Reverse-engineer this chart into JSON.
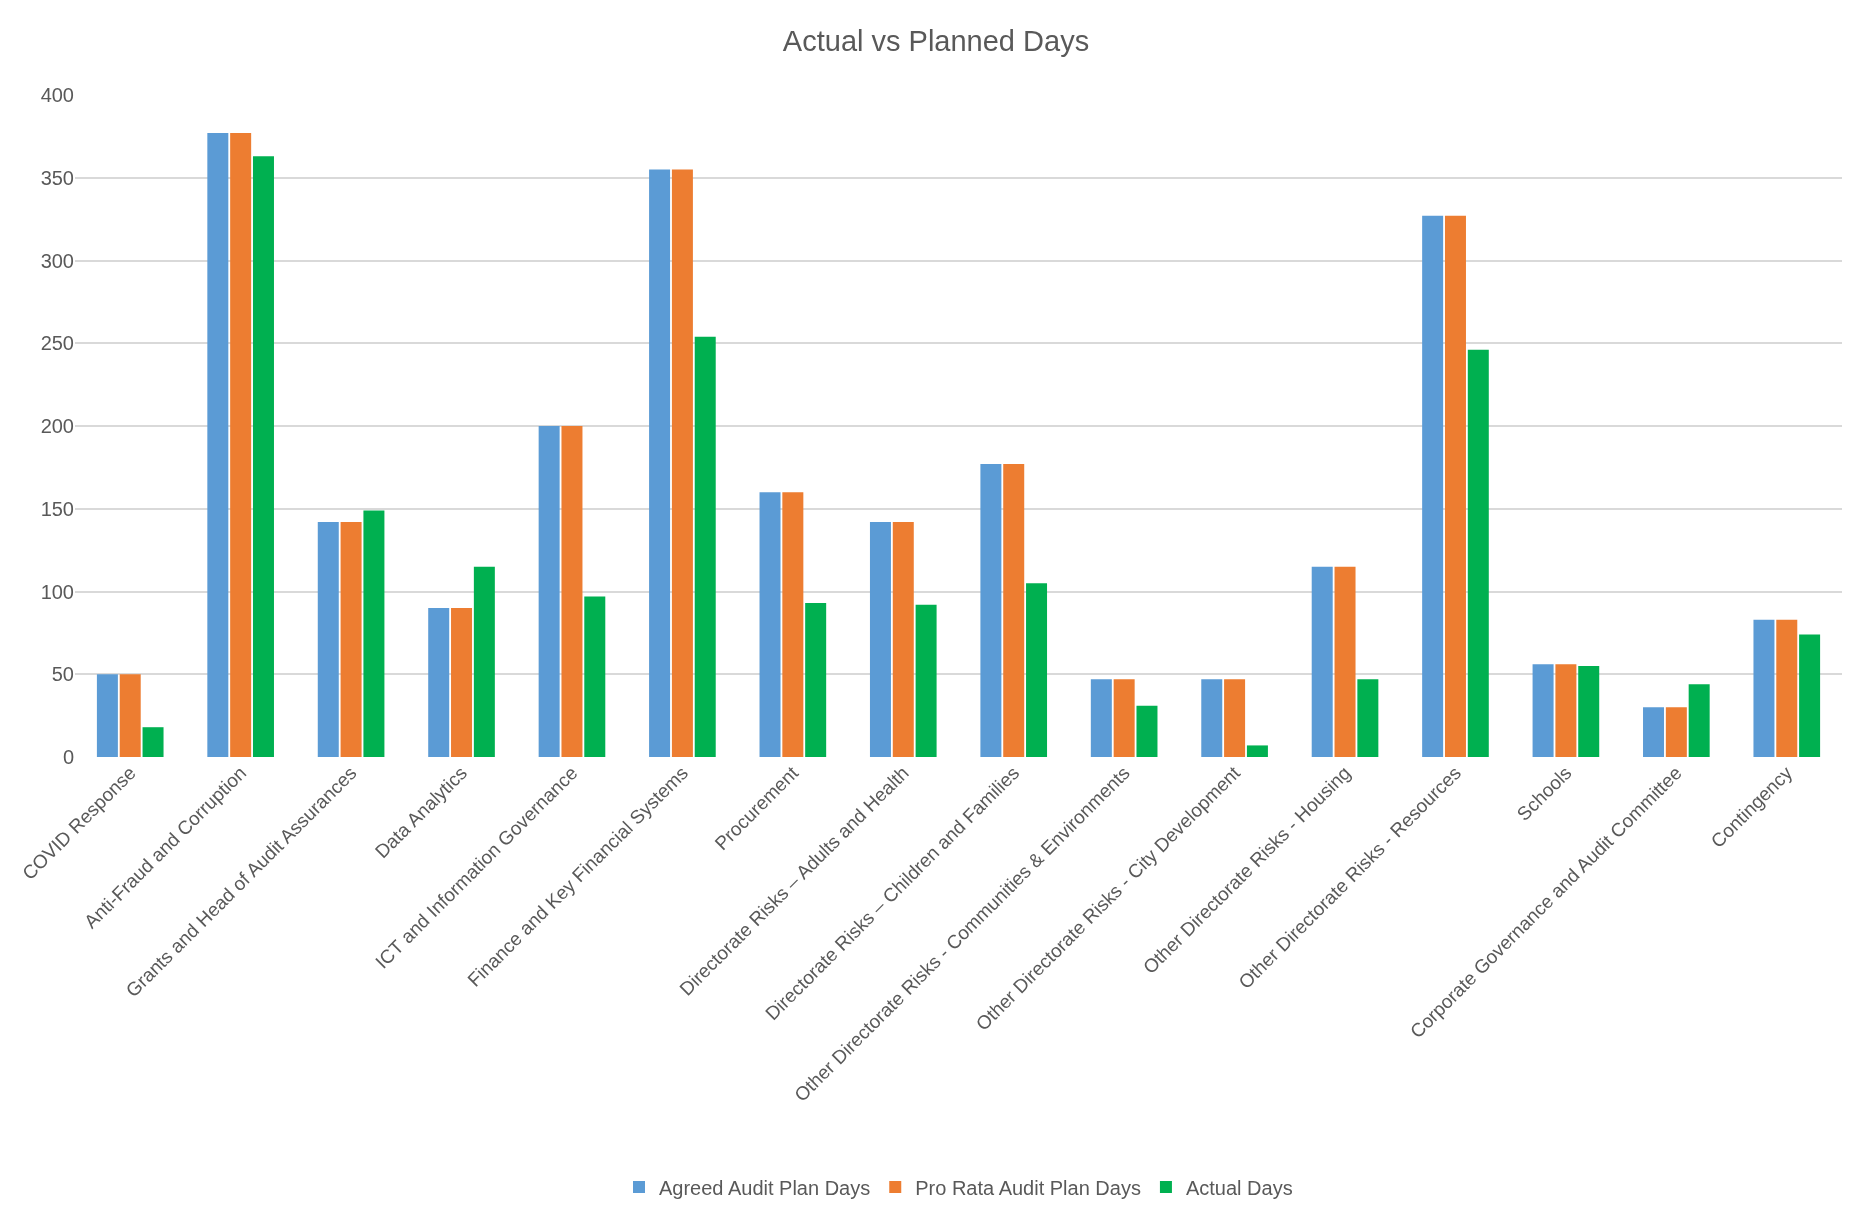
{
  "chart_data": {
    "type": "bar",
    "title": "Actual vs Planned Days",
    "categories": [
      "COVID Response",
      "Anti-Fraud and Corruption",
      "Grants and Head of Audit Assurances",
      "Data Analytics",
      "ICT and Information Governance",
      "Finance and Key Financial Systems",
      "Procurement",
      "Directorate Risks – Adults and Health",
      "Directorate Risks – Children and Families",
      "Other Directorate Risks - Communities & Environments",
      "Other Directorate Risks - City Development",
      "Other Directorate Risks - Housing",
      "Other Directorate Risks - Resources",
      "Schools",
      "Corporate Governance and Audit Committee",
      "Contingency"
    ],
    "series": [
      {
        "name": "Agreed Audit Plan Days",
        "color": "#5b9bd5",
        "values": [
          50,
          377,
          142,
          90,
          200,
          355,
          160,
          142,
          177,
          47,
          47,
          115,
          327,
          56,
          30,
          83
        ]
      },
      {
        "name": "Pro Rata Audit Plan Days",
        "color": "#ed7d31",
        "values": [
          50,
          377,
          142,
          90,
          200,
          355,
          160,
          142,
          177,
          47,
          47,
          115,
          327,
          56,
          30,
          83
        ]
      },
      {
        "name": "Actual Days",
        "color": "#00b050",
        "values": [
          18,
          363,
          149,
          115,
          97,
          254,
          93,
          92,
          105,
          31,
          7,
          47,
          246,
          55,
          44,
          74
        ]
      }
    ],
    "ylim": [
      0,
      400
    ],
    "yticks": [
      0,
      50,
      100,
      150,
      200,
      250,
      300,
      350,
      400
    ],
    "grid": "y",
    "legend": "bottom"
  }
}
